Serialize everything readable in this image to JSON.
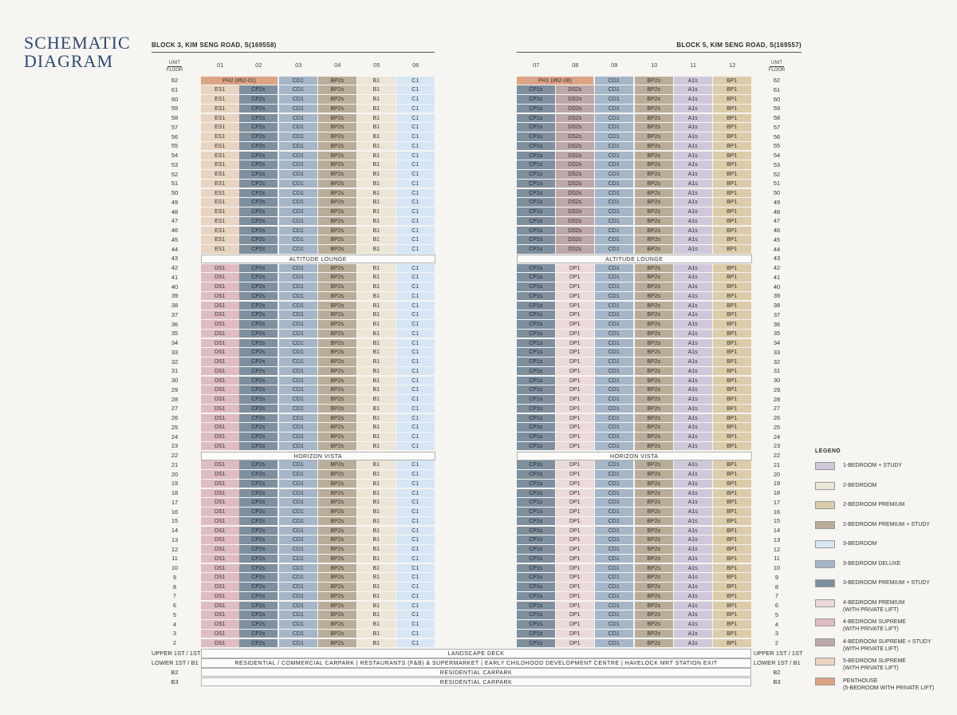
{
  "title": "SCHEMATIC\nDIAGRAM",
  "blocks": [
    {
      "label": "BLOCK 3, KIM SENG ROAD, S(169558)",
      "units": [
        "01",
        "02",
        "03",
        "04",
        "05",
        "06"
      ]
    },
    {
      "label": "BLOCK 5, KIM SENG ROAD, S(169557)",
      "units": [
        "07",
        "08",
        "09",
        "10",
        "11",
        "12"
      ]
    }
  ],
  "header": {
    "unit": "UNIT",
    "floor": "FLOOR"
  },
  "colors": {
    "A1s": "#cfc8db",
    "B1": "#ece6d7",
    "BP1": "#dcccaa",
    "BP2s": "#b9ad98",
    "C1": "#d6e6f4",
    "CD1": "#a4b6c8",
    "CP1s": "#7e8f9d",
    "CP2s": "#7e8f9d",
    "DP1": "#ecd9da",
    "DS1": "#dfbcc0",
    "DS2s": "#bda7a9",
    "ES1": "#e9d4c1",
    "PH": "#dca485"
  },
  "floors": {
    "f62": {
      "label": "62",
      "b3": [
        "PH2 (#62-01)",
        "CD1",
        "BP2s",
        "B1",
        "C1"
      ],
      "b5": [
        "PH1 (#62-08)",
        "CD1",
        "BP2s",
        "A1s",
        "BP1"
      ]
    },
    "f44": {
      "label": "44",
      "b3": [
        "ES1",
        "CP2s",
        "CD1",
        "BP2s",
        "B1",
        "C1"
      ],
      "b5": [
        "CP1s",
        "DS2s",
        "CD1",
        "BP2s",
        "A1s",
        "BP1"
      ]
    },
    "f43": {
      "label": "43",
      "band": "ALTITUDE LOUNGE"
    },
    "f42": {
      "label": "42",
      "b3": [
        "DS1",
        "CP2s",
        "CD1",
        "BP2s",
        "B1",
        "C1"
      ],
      "b5": [
        "CP1s",
        "DP1",
        "CD1",
        "BP2s",
        "A1s",
        "BP1"
      ]
    },
    "f22": {
      "label": "22",
      "band": "HORIZON VISTA"
    },
    "f2": {
      "label": "2"
    }
  },
  "podium": [
    {
      "label": "UPPER 1ST / 1ST",
      "text": "LANDSCAPE DECK"
    },
    {
      "label": "LOWER 1ST / B1",
      "text": "RESIDENTIAL / COMMERCIAL CARPARK | RESTAURANTS (F&B) & SUPERMARKET | EARLY CHILDHOOD DEVELOPMENT CENTRE | HAVELOCK MRT STATION EXIT"
    },
    {
      "label": "B2",
      "text": "RESIDENTIAL CARPARK"
    },
    {
      "label": "B3",
      "text": "RESIDENTIAL CARPARK"
    }
  ],
  "legend": {
    "title": "LEGEND",
    "items": [
      {
        "label": "1-BEDROOM + STUDY",
        "color": "#cfc8db"
      },
      {
        "label": "2-BEDROOM",
        "color": "#ece6d7"
      },
      {
        "label": "2-BEDROOM PREMIUM",
        "color": "#dcccaa"
      },
      {
        "label": "2-BEDROOM PREMIUM + STUDY",
        "color": "#b9ad98"
      },
      {
        "label": "3-BEDROOM",
        "color": "#d6e6f4"
      },
      {
        "label": "3-BEDROOM DELUXE",
        "color": "#a4b6c8"
      },
      {
        "label": "3-BEDROOM PREMIUM + STUDY",
        "color": "#7e8f9d"
      },
      {
        "label": "4-BEDROOM PREMIUM\n(WITH PRIVATE LIFT)",
        "color": "#ecd9da"
      },
      {
        "label": "4-BEDROOM SUPREME\n(WITH PRIVATE LIFT)",
        "color": "#dfbcc0"
      },
      {
        "label": "4-BEDROOM SUPREME + STUDY\n(WITH PRIVATE LIFT)",
        "color": "#bda7a9"
      },
      {
        "label": "5-BEDROOM SUPREME\n(WITH PRIVATE LIFT)",
        "color": "#e9d4c1"
      },
      {
        "label": "PENTHOUSE\n(5-BEDROOM WITH PRIVATE LIFT)",
        "color": "#dca485"
      }
    ]
  }
}
